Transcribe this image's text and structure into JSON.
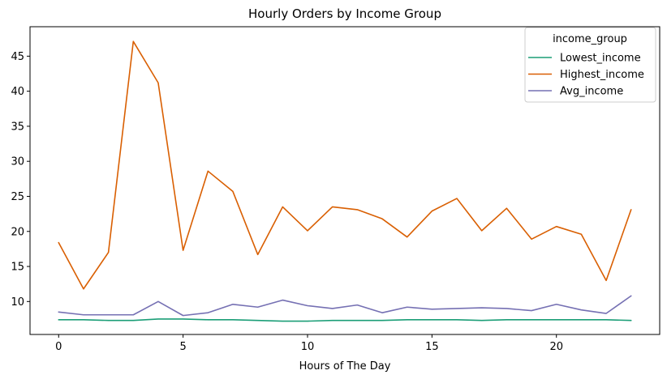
{
  "chart_data": {
    "type": "line",
    "title": "Hourly Orders by Income Group",
    "xlabel": "Hours of The Day",
    "ylabel": "",
    "x": [
      0,
      1,
      2,
      3,
      4,
      5,
      6,
      7,
      8,
      9,
      10,
      11,
      12,
      13,
      14,
      15,
      16,
      17,
      18,
      19,
      20,
      21,
      22,
      23
    ],
    "xlim": [
      -1.15,
      24.15
    ],
    "ylim": [
      5.3,
      49.2
    ],
    "xticks": [
      0,
      5,
      10,
      15,
      20
    ],
    "yticks": [
      10,
      15,
      20,
      25,
      30,
      35,
      40,
      45
    ],
    "grid": false,
    "legend": {
      "title": "income_group",
      "position": "top-right"
    },
    "series": [
      {
        "name": "Lowest_income",
        "color": "#1b9e77",
        "values": [
          7.4,
          7.4,
          7.3,
          7.3,
          7.5,
          7.5,
          7.4,
          7.4,
          7.3,
          7.2,
          7.2,
          7.3,
          7.3,
          7.3,
          7.4,
          7.4,
          7.4,
          7.3,
          7.4,
          7.4,
          7.4,
          7.4,
          7.4,
          7.3
        ]
      },
      {
        "name": "Highest_income",
        "color": "#d95f02",
        "values": [
          18.4,
          11.8,
          17.0,
          47.1,
          41.2,
          17.3,
          28.6,
          25.7,
          16.7,
          23.5,
          20.1,
          23.5,
          23.1,
          21.8,
          19.2,
          22.9,
          24.7,
          20.1,
          23.3,
          18.9,
          20.7,
          19.6,
          13.0,
          23.1
        ]
      },
      {
        "name": "Avg_income",
        "color": "#7570b3",
        "values": [
          8.5,
          8.1,
          8.1,
          8.1,
          10.0,
          8.0,
          8.4,
          9.6,
          9.2,
          10.2,
          9.4,
          9.0,
          9.5,
          8.4,
          9.2,
          8.9,
          9.0,
          9.1,
          9.0,
          8.7,
          9.6,
          8.8,
          8.3,
          10.8
        ]
      }
    ]
  }
}
